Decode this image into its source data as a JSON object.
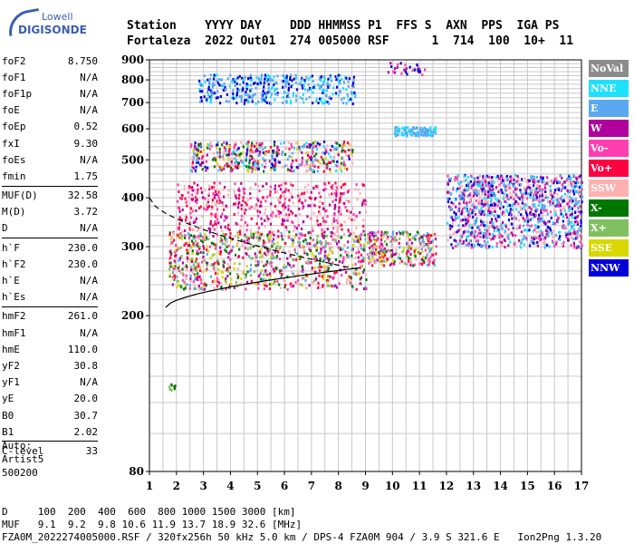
{
  "logo": {
    "line1": "Lowell",
    "line2": "DIGISONDE"
  },
  "header": {
    "row1": "Station    YYYY DAY    DDD HHMMSS P1  FFS S  AXN  PPS  IGA PS",
    "row2": "Fortaleza  2022 Out01  274 005000 RSF      1  714  100  10+  11"
  },
  "params": {
    "group1": [
      {
        "name": "foF2",
        "value": "8.750"
      },
      {
        "name": "foF1",
        "value": "N/A"
      },
      {
        "name": "foF1p",
        "value": "N/A"
      },
      {
        "name": "foE",
        "value": "N/A"
      },
      {
        "name": "foEp",
        "value": "0.52"
      },
      {
        "name": "fxI",
        "value": "9.30"
      },
      {
        "name": "foEs",
        "value": "N/A"
      },
      {
        "name": "fmin",
        "value": "1.75"
      }
    ],
    "group2": [
      {
        "name": "MUF(D)",
        "value": "32.58"
      },
      {
        "name": "M(D)",
        "value": "3.72"
      },
      {
        "name": "D",
        "value": "N/A"
      }
    ],
    "group3": [
      {
        "name": "h`F",
        "value": "230.0"
      },
      {
        "name": "h`F2",
        "value": "230.0"
      },
      {
        "name": "h`E",
        "value": "N/A"
      },
      {
        "name": "h`Es",
        "value": "N/A"
      }
    ],
    "group4": [
      {
        "name": "hmF2",
        "value": "261.0"
      },
      {
        "name": "hmF1",
        "value": "N/A"
      },
      {
        "name": "hmE",
        "value": "110.0"
      },
      {
        "name": "yF2",
        "value": "30.8"
      },
      {
        "name": "yF1",
        "value": "N/A"
      },
      {
        "name": "yE",
        "value": "20.0"
      },
      {
        "name": "B0",
        "value": "30.7"
      },
      {
        "name": "B1",
        "value": "2.02"
      }
    ],
    "group5": [
      {
        "name": "C-level",
        "value": "33"
      }
    ]
  },
  "auto": {
    "line1": "Auto:",
    "line2": "Artist5",
    "line3": "500200"
  },
  "footer": {
    "line1": "D     100  200  400  600  800 1000 1500 3000 [km]",
    "line2": "MUF   9.1  9.2  9.8 10.6 11.9 13.7 18.9 32.6 [MHz]",
    "line3": "FZA0M_2022274005000.RSF / 320fx256h 50 kHz 5.0 km / DPS-4 FZA0M 904 / 3.9 S 321.6 E   Ion2Png 1.3.20"
  },
  "legend": [
    {
      "label": "NoVal",
      "color": "#8c8c8c"
    },
    {
      "label": "NNE",
      "color": "#1ee0ff"
    },
    {
      "label": "E",
      "color": "#5aa8f0"
    },
    {
      "label": "W",
      "color": "#b0009e"
    },
    {
      "label": "Vo-",
      "color": "#ff3fb0"
    },
    {
      "label": "Vo+",
      "color": "#ff0040"
    },
    {
      "label": "SSW",
      "color": "#ffb0b0"
    },
    {
      "label": "X-",
      "color": "#007800"
    },
    {
      "label": "X+",
      "color": "#80c060"
    },
    {
      "label": "SSE",
      "color": "#d8d800"
    },
    {
      "label": "NNW",
      "color": "#0000d8"
    }
  ],
  "chart_data": {
    "type": "scatter",
    "x_ticks": [
      "1",
      "2",
      "3",
      "4",
      "5",
      "6",
      "7",
      "8",
      "9",
      "10",
      "11",
      "12",
      "13",
      "14",
      "15",
      "16",
      "17"
    ],
    "y_ticks": [
      "80",
      "200",
      "300",
      "400",
      "500",
      "600",
      "700",
      "800",
      "900"
    ],
    "xlim": [
      1,
      17
    ],
    "y_scale": "log",
    "ylim": [
      80,
      900
    ],
    "grid": true,
    "traces": [
      {
        "freq_start": 1.6,
        "freq_end": 8.8,
        "height_start": 210,
        "height_end": 265
      },
      {
        "freq_start": 1.0,
        "freq_end": 8.8,
        "height_start": 400,
        "height_end": 262
      }
    ]
  }
}
